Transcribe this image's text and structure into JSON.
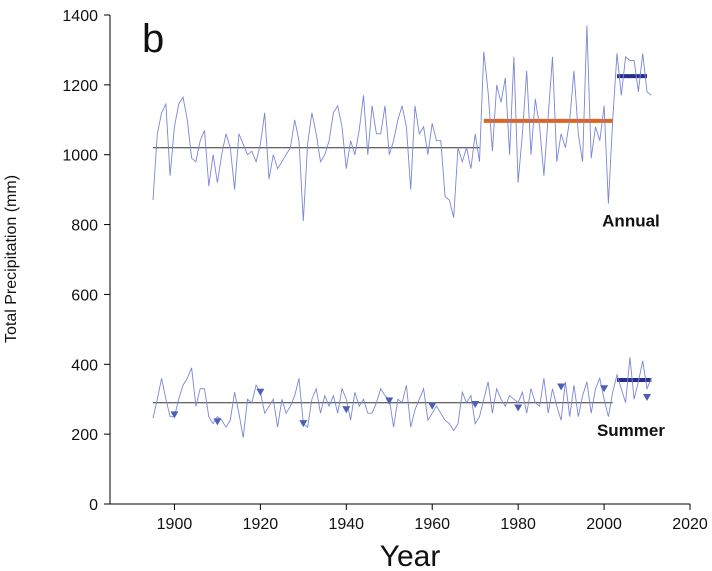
{
  "chart_data": {
    "type": "line",
    "panel_label": "b",
    "xlabel": "Year",
    "ylabel": "Total Precipitation (mm)",
    "xlim": [
      1885,
      2020
    ],
    "ylim": [
      0,
      1400
    ],
    "xticks": [
      1900,
      1920,
      1940,
      1960,
      1980,
      2000,
      2020
    ],
    "yticks": [
      0,
      200,
      400,
      600,
      800,
      1000,
      1200,
      1400
    ],
    "grid": false,
    "colors": {
      "series_line": "#7a86d6",
      "mean_line": "#333333",
      "mean_segment_orange": "#e0641c",
      "mean_segment_navy": "#2a2f8f",
      "marker": "#4a5fb5"
    },
    "series": [
      {
        "name": "Annual",
        "x": [
          1895,
          1896,
          1897,
          1898,
          1899,
          1900,
          1901,
          1902,
          1903,
          1904,
          1905,
          1906,
          1907,
          1908,
          1909,
          1910,
          1911,
          1912,
          1913,
          1914,
          1915,
          1916,
          1917,
          1918,
          1919,
          1920,
          1921,
          1922,
          1923,
          1924,
          1925,
          1926,
          1927,
          1928,
          1929,
          1930,
          1931,
          1932,
          1933,
          1934,
          1935,
          1936,
          1937,
          1938,
          1939,
          1940,
          1941,
          1942,
          1943,
          1944,
          1945,
          1946,
          1947,
          1948,
          1949,
          1950,
          1951,
          1952,
          1953,
          1954,
          1955,
          1956,
          1957,
          1958,
          1959,
          1960,
          1961,
          1962,
          1963,
          1964,
          1965,
          1966,
          1967,
          1968,
          1969,
          1970,
          1971,
          1972,
          1973,
          1974,
          1975,
          1976,
          1977,
          1978,
          1979,
          1980,
          1981,
          1982,
          1983,
          1984,
          1985,
          1986,
          1987,
          1988,
          1989,
          1990,
          1991,
          1992,
          1993,
          1994,
          1995,
          1996,
          1997,
          1998,
          1999,
          2000,
          2001,
          2002,
          2003,
          2004,
          2005,
          2006,
          2007,
          2008,
          2009,
          2010,
          2011
        ],
        "values": [
          870,
          1060,
          1120,
          1145,
          940,
          1080,
          1145,
          1165,
          1100,
          990,
          980,
          1040,
          1070,
          910,
          1000,
          920,
          1000,
          1060,
          1020,
          900,
          1060,
          1030,
          1000,
          1010,
          980,
          1030,
          1120,
          930,
          1000,
          960,
          980,
          1000,
          1020,
          1100,
          1040,
          810,
          1030,
          1120,
          1060,
          980,
          1000,
          1040,
          1120,
          1140,
          1080,
          960,
          1040,
          1000,
          1070,
          1170,
          1000,
          1140,
          1060,
          1060,
          1140,
          1000,
          1040,
          1100,
          1140,
          1080,
          900,
          1140,
          1060,
          1080,
          1000,
          1090,
          1040,
          1040,
          880,
          870,
          820,
          1020,
          980,
          1020,
          960,
          1060,
          980,
          1295,
          1180,
          1010,
          1200,
          1150,
          1220,
          1000,
          1280,
          920,
          1060,
          1240,
          1000,
          1160,
          1080,
          940,
          1110,
          1280,
          980,
          1060,
          1020,
          1100,
          1240,
          1060,
          980,
          1370,
          990,
          1080,
          1040,
          1140,
          860,
          1100,
          1290,
          1170,
          1280,
          1270,
          1270,
          1180,
          1290,
          1180,
          1170
        ]
      },
      {
        "name": "Summer",
        "x": [
          1895,
          1896,
          1897,
          1898,
          1899,
          1900,
          1901,
          1902,
          1903,
          1904,
          1905,
          1906,
          1907,
          1908,
          1909,
          1910,
          1911,
          1912,
          1913,
          1914,
          1915,
          1916,
          1917,
          1918,
          1919,
          1920,
          1921,
          1922,
          1923,
          1924,
          1925,
          1926,
          1927,
          1928,
          1929,
          1930,
          1931,
          1932,
          1933,
          1934,
          1935,
          1936,
          1937,
          1938,
          1939,
          1940,
          1941,
          1942,
          1943,
          1944,
          1945,
          1946,
          1947,
          1948,
          1949,
          1950,
          1951,
          1952,
          1953,
          1954,
          1955,
          1956,
          1957,
          1958,
          1959,
          1960,
          1961,
          1962,
          1963,
          1964,
          1965,
          1966,
          1967,
          1968,
          1969,
          1970,
          1971,
          1972,
          1973,
          1974,
          1975,
          1976,
          1977,
          1978,
          1979,
          1980,
          1981,
          1982,
          1983,
          1984,
          1985,
          1986,
          1987,
          1988,
          1989,
          1990,
          1991,
          1992,
          1993,
          1994,
          1995,
          1996,
          1997,
          1998,
          1999,
          2000,
          2001,
          2002,
          2003,
          2004,
          2005,
          2006,
          2007,
          2008,
          2009,
          2010,
          2011
        ],
        "values": [
          245,
          300,
          360,
          300,
          250,
          250,
          300,
          340,
          360,
          390,
          280,
          330,
          330,
          250,
          230,
          250,
          240,
          220,
          240,
          320,
          260,
          190,
          300,
          290,
          340,
          320,
          260,
          280,
          300,
          220,
          300,
          260,
          280,
          310,
          360,
          230,
          220,
          300,
          330,
          260,
          310,
          280,
          310,
          260,
          330,
          300,
          240,
          320,
          280,
          300,
          260,
          260,
          290,
          330,
          310,
          300,
          220,
          300,
          290,
          340,
          220,
          270,
          300,
          330,
          240,
          260,
          280,
          260,
          240,
          230,
          210,
          230,
          320,
          290,
          310,
          230,
          250,
          300,
          350,
          260,
          330,
          300,
          280,
          310,
          300,
          290,
          320,
          260,
          330,
          290,
          280,
          360,
          260,
          330,
          280,
          240,
          350,
          250,
          340,
          250,
          310,
          350,
          260,
          330,
          360,
          300,
          250,
          320,
          370,
          330,
          290,
          420,
          300,
          350,
          410,
          330,
          360
        ]
      }
    ],
    "mean_lines": [
      {
        "series": "Annual",
        "x": [
          1895,
          1971
        ],
        "y": 1020,
        "style": "thin-dark"
      },
      {
        "series": "Annual",
        "x": [
          1972,
          2002
        ],
        "y": 1097,
        "style": "thick-orange"
      },
      {
        "series": "Annual",
        "x": [
          2003,
          2010
        ],
        "y": 1225,
        "style": "thick-navy"
      },
      {
        "series": "Summer",
        "x": [
          1895,
          2002
        ],
        "y": 290,
        "style": "thin-dark"
      },
      {
        "series": "Summer",
        "x": [
          2003,
          2011
        ],
        "y": 355,
        "style": "thick-navy"
      }
    ],
    "markers": {
      "series": "Summer",
      "shape": "triangle-down",
      "points": [
        {
          "x": 1900,
          "y": 255
        },
        {
          "x": 1910,
          "y": 235
        },
        {
          "x": 1920,
          "y": 320
        },
        {
          "x": 1930,
          "y": 230
        },
        {
          "x": 1940,
          "y": 270
        },
        {
          "x": 1950,
          "y": 295
        },
        {
          "x": 1960,
          "y": 280
        },
        {
          "x": 1970,
          "y": 285
        },
        {
          "x": 1980,
          "y": 275
        },
        {
          "x": 1990,
          "y": 335
        },
        {
          "x": 2000,
          "y": 330
        },
        {
          "x": 2010,
          "y": 305
        }
      ]
    },
    "annotations": [
      {
        "text": "Annual",
        "anchor_x": 2003,
        "anchor_y": 795
      },
      {
        "text": "Summer",
        "anchor_x": 2003,
        "anchor_y": 195
      }
    ]
  }
}
